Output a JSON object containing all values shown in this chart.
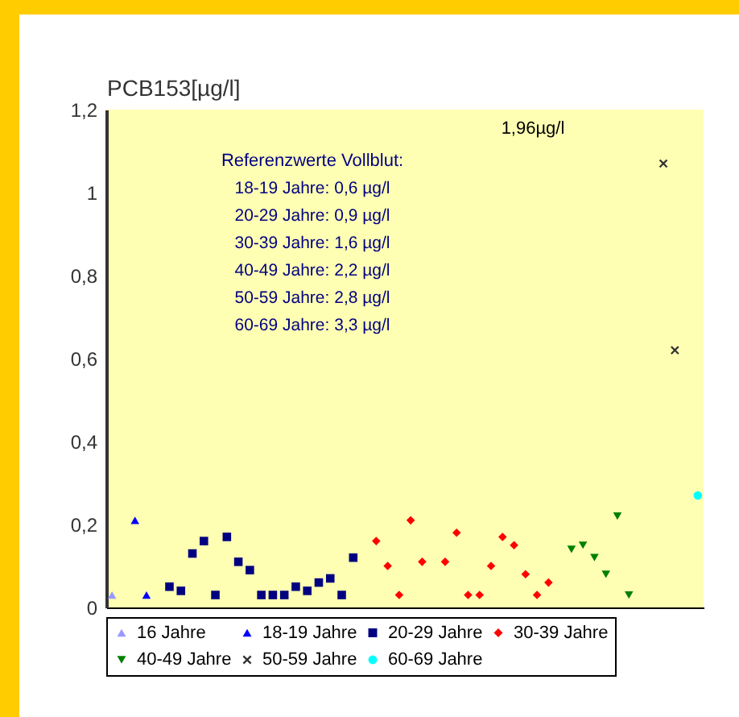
{
  "chart_data": {
    "type": "scatter",
    "ylabel": "PCB153[µg/l]",
    "categories": [
      null,
      null,
      null,
      null,
      null,
      null,
      null,
      null,
      null,
      null,
      null,
      null,
      null,
      null,
      null,
      null,
      null,
      null,
      null,
      null,
      null,
      null,
      null,
      null,
      null,
      null,
      null,
      null,
      null,
      null,
      null,
      null,
      null,
      null,
      null,
      null,
      null,
      null,
      null,
      null,
      null,
      null,
      null,
      null,
      null,
      null,
      null,
      null,
      null,
      null,
      null,
      null
    ],
    "series": [
      {
        "name": "16 Jahre",
        "color": "#9999ff",
        "marker": "triangle",
        "values": [
          0.03,
          null,
          null,
          null,
          null,
          null,
          null,
          null,
          null,
          null,
          null,
          null,
          null,
          null,
          null,
          null,
          null,
          null,
          null,
          null,
          null,
          null,
          null,
          null,
          null,
          null,
          null,
          null,
          null,
          null,
          null,
          null,
          null,
          null,
          null,
          null,
          null,
          null,
          null,
          null,
          null,
          null,
          null,
          null,
          null,
          null,
          null,
          null,
          null,
          null,
          null,
          null
        ]
      },
      {
        "name": "18-19 Jahre",
        "color": "#0000ff",
        "marker": "triangle",
        "values": [
          null,
          null,
          0.21,
          0.03,
          null,
          null,
          null,
          null,
          null,
          null,
          null,
          null,
          null,
          null,
          null,
          null,
          null,
          null,
          null,
          null,
          null,
          null,
          null,
          null,
          null,
          null,
          null,
          null,
          null,
          null,
          null,
          null,
          null,
          null,
          null,
          null,
          null,
          null,
          null,
          null,
          null,
          null,
          null,
          null,
          null,
          null,
          null,
          null,
          null,
          null,
          null,
          null
        ]
      },
      {
        "name": "20-29 Jahre",
        "color": "#000080",
        "marker": "square",
        "values": [
          null,
          null,
          null,
          null,
          null,
          0.05,
          0.04,
          0.13,
          0.16,
          0.03,
          0.17,
          0.11,
          0.09,
          0.03,
          0.03,
          0.03,
          0.05,
          0.04,
          0.06,
          0.07,
          0.03,
          0.12,
          null,
          null,
          null,
          null,
          null,
          null,
          null,
          null,
          null,
          null,
          null,
          null,
          null,
          null,
          null,
          null,
          null,
          null,
          null,
          null,
          null,
          null,
          null,
          null,
          null,
          null,
          null,
          null,
          null,
          null
        ]
      },
      {
        "name": "30-39 Jahre",
        "color": "#ff0000",
        "marker": "diamond",
        "values": [
          null,
          null,
          null,
          null,
          null,
          null,
          null,
          null,
          null,
          null,
          null,
          null,
          null,
          null,
          null,
          null,
          null,
          null,
          null,
          null,
          null,
          null,
          null,
          0.16,
          0.1,
          0.03,
          0.21,
          0.11,
          null,
          0.11,
          0.18,
          0.03,
          0.03,
          0.1,
          0.17,
          0.15,
          0.08,
          0.03,
          0.06,
          null,
          null,
          null,
          null,
          null,
          null,
          null,
          null,
          null,
          null,
          null,
          null,
          null
        ]
      },
      {
        "name": "40-49 Jahre",
        "color": "#008000",
        "marker": "triangle-down",
        "values": [
          null,
          null,
          null,
          null,
          null,
          null,
          null,
          null,
          null,
          null,
          null,
          null,
          null,
          null,
          null,
          null,
          null,
          null,
          null,
          null,
          null,
          null,
          null,
          null,
          null,
          null,
          null,
          null,
          null,
          null,
          null,
          null,
          null,
          null,
          null,
          null,
          null,
          null,
          null,
          null,
          0.14,
          0.15,
          0.12,
          0.08,
          0.22,
          0.03,
          null,
          null,
          null,
          null,
          null,
          null
        ]
      },
      {
        "name": "50-59 Jahre",
        "color": "#333333",
        "marker": "cross",
        "values": [
          null,
          null,
          null,
          null,
          null,
          null,
          null,
          null,
          null,
          null,
          null,
          null,
          null,
          null,
          null,
          null,
          null,
          null,
          null,
          null,
          null,
          null,
          null,
          null,
          null,
          null,
          null,
          null,
          null,
          null,
          null,
          null,
          null,
          null,
          null,
          null,
          null,
          null,
          null,
          null,
          null,
          null,
          null,
          null,
          null,
          null,
          null,
          null,
          1.07,
          0.62,
          null,
          null
        ]
      },
      {
        "name": "60-69 Jahre",
        "color": "#00ffff",
        "marker": "circle",
        "values": [
          null,
          null,
          null,
          null,
          null,
          null,
          null,
          null,
          null,
          null,
          null,
          null,
          null,
          null,
          null,
          null,
          null,
          null,
          null,
          null,
          null,
          null,
          null,
          null,
          null,
          null,
          null,
          null,
          null,
          null,
          null,
          null,
          null,
          null,
          null,
          null,
          null,
          null,
          null,
          null,
          null,
          null,
          null,
          null,
          null,
          null,
          null,
          null,
          null,
          null,
          null,
          0.27
        ]
      }
    ],
    "ylim": [
      0,
      1.2
    ],
    "yticks": [
      0,
      {
        "value": 0.2,
        "label": "0,2"
      },
      {
        "value": 0.4,
        "label": "0,4"
      },
      {
        "value": 0.6,
        "label": "0,6"
      },
      {
        "value": 0.8,
        "label": "0,8"
      },
      1,
      {
        "value": 1.2,
        "label": "1,2"
      }
    ],
    "tick_labels": "y",
    "grid": false,
    "legend": "bottom",
    "annotations": [
      "Referenzwerte Vollblut:",
      "18-19 Jahre: 0,6 µg/l",
      "20-29 Jahre: 0,9 µg/l",
      "30-39 Jahre: 1,6 µg/l",
      "40-49 Jahre: 2,2 µg/l",
      "50-59 Jahre: 2,8 µg/l",
      "60-69 Jahre: 3,3 µg/l",
      "1,96µg/l"
    ]
  }
}
